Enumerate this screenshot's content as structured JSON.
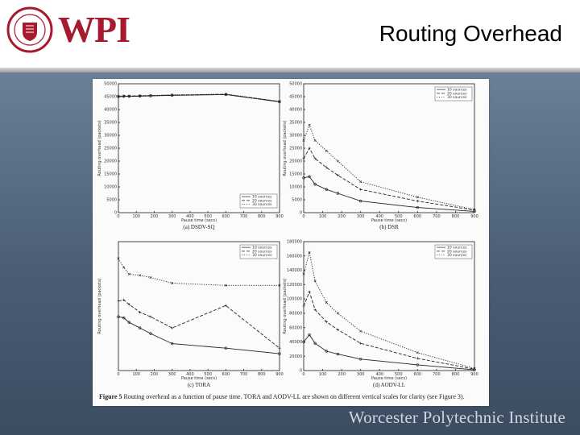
{
  "header": {
    "logo_text": "WPI",
    "title": "Routing Overhead"
  },
  "footer": {
    "brand": "Worcester Polytechnic Institute"
  },
  "figure": {
    "caption_lead": "Figure 5",
    "caption_text": "Routing overhead as a function of pause time. TORA and AODV-LL are shown on different vertical scales for clarity (see Figure 3).",
    "x_label": "Pause time (secs)"
  },
  "colors": {
    "brand": "#a6192e",
    "background_top": "#6a8097",
    "background_bottom": "#3c4d62"
  },
  "chart_data": [
    {
      "type": "line",
      "caption": "(a) DSDV-SQ",
      "ylabel": "Routing overhead (packets)",
      "xlim": [
        0,
        900
      ],
      "ylim": [
        0,
        50000
      ],
      "x_ticks": [
        "0",
        "100",
        "200",
        "300",
        "400",
        "500",
        "600",
        "700",
        "800",
        "900"
      ],
      "y_ticks": [
        "0",
        "5000",
        "10000",
        "15000",
        "20000",
        "25000",
        "30000",
        "35000",
        "40000",
        "45000",
        "50000"
      ],
      "x": [
        0,
        30,
        60,
        120,
        180,
        300,
        600,
        900
      ],
      "series": [
        {
          "name": "10 sources",
          "style": "solid",
          "values": [
            45000,
            45100,
            45100,
            45200,
            45300,
            45500,
            45800,
            43000
          ]
        },
        {
          "name": "20 sources",
          "style": "dashed",
          "values": [
            45100,
            45200,
            45200,
            45300,
            45400,
            45600,
            45900,
            43100
          ]
        },
        {
          "name": "30 sources",
          "style": "dotted",
          "values": [
            45200,
            45300,
            45300,
            45400,
            45500,
            45700,
            46000,
            43200
          ]
        }
      ],
      "legend_position": "bottom-right"
    },
    {
      "type": "line",
      "caption": "(b) DSR",
      "ylabel": "Routing overhead (packets)",
      "xlim": [
        0,
        900
      ],
      "ylim": [
        0,
        50000
      ],
      "x_ticks": [
        "0",
        "100",
        "200",
        "300",
        "400",
        "500",
        "600",
        "700",
        "800",
        "900"
      ],
      "y_ticks": [
        "0",
        "5000",
        "10000",
        "15000",
        "20000",
        "25000",
        "30000",
        "35000",
        "40000",
        "45000",
        "50000"
      ],
      "x": [
        0,
        30,
        60,
        120,
        180,
        300,
        600,
        900
      ],
      "series": [
        {
          "name": "10 sources",
          "style": "solid",
          "values": [
            13500,
            14000,
            11000,
            9000,
            7500,
            4500,
            2000,
            500
          ]
        },
        {
          "name": "20 sources",
          "style": "dashed",
          "values": [
            21000,
            25000,
            21000,
            17500,
            14500,
            9000,
            4500,
            1000
          ]
        },
        {
          "name": "30 sources",
          "style": "dotted",
          "values": [
            28000,
            34000,
            28000,
            24000,
            20000,
            12000,
            6000,
            1200
          ]
        }
      ],
      "legend_position": "top-right"
    },
    {
      "type": "line",
      "caption": "(c) TORA",
      "ylabel": "Routing overhead (packets)",
      "xlim": [
        0,
        900
      ],
      "x_ticks": [
        "0",
        "100",
        "200",
        "300",
        "400",
        "500",
        "600",
        "700",
        "800",
        "900"
      ],
      "x": [
        0,
        30,
        60,
        120,
        180,
        300,
        600,
        900
      ],
      "series": [
        {
          "name": "10 sources",
          "style": "solid",
          "values": [
            0.78,
            0.77,
            0.73,
            0.68,
            0.63,
            0.54,
            0.5,
            0.45
          ]
        },
        {
          "name": "20 sources",
          "style": "dashed",
          "values": [
            0.92,
            0.93,
            0.89,
            0.82,
            0.78,
            0.68,
            0.88,
            0.5
          ]
        },
        {
          "name": "30 sources",
          "style": "dotted",
          "values": [
            1.3,
            1.22,
            1.16,
            1.15,
            1.13,
            1.08,
            1.06,
            1.06
          ]
        }
      ],
      "legend_position": "top-right"
    },
    {
      "type": "line",
      "caption": "(d) AODV-LL",
      "ylabel": "Routing overhead (packets)",
      "xlim": [
        0,
        900
      ],
      "ylim": [
        0,
        180000
      ],
      "x_ticks": [
        "0",
        "100",
        "200",
        "300",
        "400",
        "500",
        "600",
        "700",
        "800",
        "900"
      ],
      "y_ticks": [
        "0",
        "20000",
        "40000",
        "60000",
        "80000",
        "100000",
        "120000",
        "140000",
        "160000",
        "180000"
      ],
      "x": [
        0,
        30,
        60,
        120,
        180,
        300,
        600,
        900
      ],
      "series": [
        {
          "name": "10 sources",
          "style": "solid",
          "values": [
            40000,
            50000,
            38000,
            27000,
            23000,
            16000,
            8000,
            1000
          ]
        },
        {
          "name": "20 sources",
          "style": "dashed",
          "values": [
            90000,
            110000,
            85000,
            68000,
            57000,
            38000,
            17000,
            2000
          ]
        },
        {
          "name": "30 sources",
          "style": "dotted",
          "values": [
            135000,
            165000,
            125000,
            95000,
            80000,
            55000,
            25000,
            3000
          ]
        }
      ],
      "legend_position": "top-right"
    }
  ]
}
